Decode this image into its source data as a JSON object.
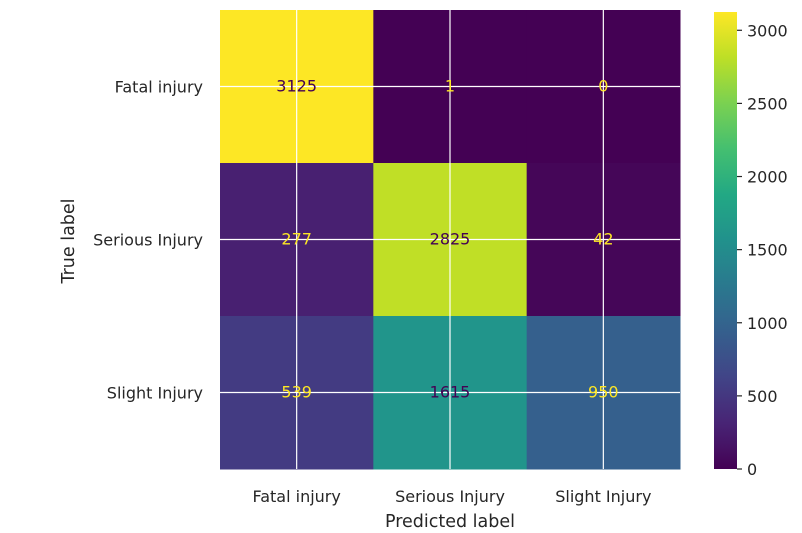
{
  "chart_data": {
    "type": "heatmap",
    "title": "",
    "xlabel": "Predicted label",
    "ylabel": "True label",
    "x_categories": [
      "Fatal injury",
      "Serious Injury",
      "Slight Injury"
    ],
    "y_categories": [
      "Fatal injury",
      "Serious Injury",
      "Slight Injury"
    ],
    "values": [
      [
        3125,
        1,
        0
      ],
      [
        277,
        2825,
        42
      ],
      [
        539,
        1615,
        950
      ]
    ],
    "colormap": "viridis",
    "colorbar": {
      "range": [
        0,
        3125
      ],
      "ticks": [
        0,
        500,
        1000,
        1500,
        2000,
        2500,
        3000
      ],
      "tick_labels": [
        "0",
        "500",
        "1000",
        "1500",
        "2000",
        "2500",
        "3000"
      ]
    },
    "grid": true,
    "text_color_dark": "#440154",
    "text_color_light": "#fde725"
  }
}
